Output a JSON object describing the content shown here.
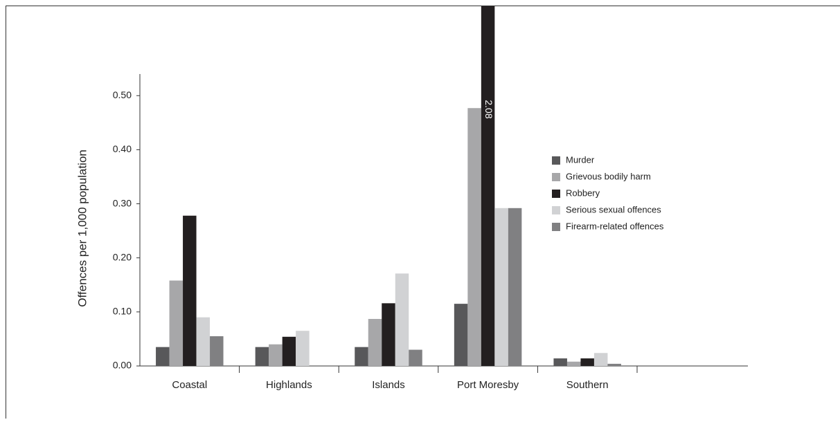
{
  "chart_data": {
    "type": "bar",
    "y_label": "Offences per 1,000 population",
    "categories": [
      "Coastal",
      "Highlands",
      "Islands",
      "Port Moresby",
      "Southern"
    ],
    "series": [
      {
        "name": "Murder",
        "color": "#58585a",
        "values": [
          0.035,
          0.035,
          0.035,
          0.115,
          0.014
        ]
      },
      {
        "name": "Grievous bodily harm",
        "color": "#a7a7a9",
        "values": [
          0.158,
          0.04,
          0.087,
          0.477,
          0.008
        ]
      },
      {
        "name": "Robbery",
        "color": "#231f20",
        "values": [
          0.278,
          0.054,
          0.116,
          2.08,
          0.014
        ],
        "value_labels": [
          null,
          null,
          null,
          "2.08",
          null
        ]
      },
      {
        "name": "Serious sexual offences",
        "color": "#d1d2d4",
        "values": [
          0.09,
          0.065,
          0.171,
          0.292,
          0.024
        ]
      },
      {
        "name": "Firearm-related offences",
        "color": "#808082",
        "values": [
          0.055,
          0,
          0.03,
          0.292,
          0.004
        ]
      }
    ],
    "ylim": [
      0,
      0.54
    ],
    "yticks": [
      {
        "value": 0,
        "label": "0.00"
      },
      {
        "value": 0.1,
        "label": "0.10"
      },
      {
        "value": 0.2,
        "label": "0.20"
      },
      {
        "value": 0.3,
        "label": "0.30"
      },
      {
        "value": 0.4,
        "label": "0.40"
      },
      {
        "value": 0.5,
        "label": "0.50"
      }
    ],
    "legend": "right"
  }
}
